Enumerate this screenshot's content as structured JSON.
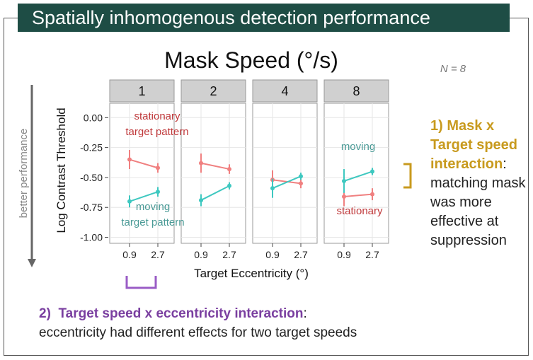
{
  "slide": {
    "title": "Spatially inhomogenous detection performance",
    "side_note": {
      "num": "1)",
      "highlight": "Mask x Target speed interaction",
      "colon": ":",
      "body": "matching mask was more effective at suppression"
    },
    "bottom_note": {
      "num": "2)",
      "highlight": "Target speed x eccentricity interaction",
      "colon": ":",
      "body": "eccentricity had different effects for two target speeds"
    }
  },
  "colors": {
    "stationary": "#f08080",
    "moving": "#3ec8c0",
    "panel_bg": "#ffffff",
    "strip_bg": "#d0d0d0",
    "grid": "#e6e6e6",
    "bracket_gold": "#c89a1e",
    "bracket_purple": "#9a5cc6",
    "label_red": "#c0393b",
    "label_teal": "#4a9a96"
  },
  "chart_data": {
    "type": "line",
    "title": "Mask Speed (°/s)",
    "n_label": "N = 8",
    "xlabel": "Target Eccentricity (°)",
    "ylabel": "Log Contrast Threshold",
    "side_arrow_label": "better performance",
    "ylim": [
      -1.05,
      0.12
    ],
    "yticks": [
      0.0,
      -0.25,
      -0.5,
      -0.75,
      -1.0
    ],
    "ytick_labels": [
      "0.00",
      "-0.25",
      "-0.50",
      "-0.75",
      "-1.00"
    ],
    "x": [
      "0.9",
      "2.7"
    ],
    "panels": [
      {
        "label": "1",
        "series": [
          {
            "name": "stationary",
            "values": [
              -0.35,
              -0.42
            ],
            "err": [
              0.08,
              0.04
            ]
          },
          {
            "name": "moving",
            "values": [
              -0.7,
              -0.62
            ],
            "err": [
              0.05,
              0.04
            ]
          }
        ]
      },
      {
        "label": "2",
        "series": [
          {
            "name": "stationary",
            "values": [
              -0.38,
              -0.43
            ],
            "err": [
              0.08,
              0.04
            ]
          },
          {
            "name": "moving",
            "values": [
              -0.69,
              -0.57
            ],
            "err": [
              0.05,
              0.03
            ]
          }
        ]
      },
      {
        "label": "4",
        "series": [
          {
            "name": "stationary",
            "values": [
              -0.52,
              -0.55
            ],
            "err": [
              0.08,
              0.04
            ]
          },
          {
            "name": "moving",
            "values": [
              -0.59,
              -0.49
            ],
            "err": [
              0.08,
              0.03
            ]
          }
        ]
      },
      {
        "label": "8",
        "series": [
          {
            "name": "stationary",
            "values": [
              -0.66,
              -0.64
            ],
            "err": [
              0.08,
              0.05
            ]
          },
          {
            "name": "moving",
            "values": [
              -0.53,
              -0.45
            ],
            "err": [
              0.1,
              0.03
            ]
          }
        ]
      }
    ],
    "annotations": {
      "stationary_top": "stationary",
      "stationary_top_2": "target pattern",
      "moving_bottom": "moving",
      "moving_bottom_2": "target pattern",
      "moving_p4": "moving",
      "stationary_p4": "stationary"
    }
  }
}
